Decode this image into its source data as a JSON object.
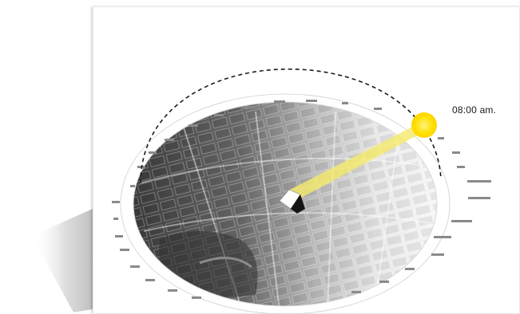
{
  "annotation": {
    "time_label": "08:00 am."
  },
  "colors": {
    "sun": "#ffe000",
    "sun_ray": "#f6ea6a",
    "dashed_arc": "#1b1b1b",
    "map_dark": "#4a4a4a",
    "map_light": "#f4f4f4"
  },
  "icons": {
    "sun": "sun-icon",
    "observer": "observer-block-icon"
  }
}
